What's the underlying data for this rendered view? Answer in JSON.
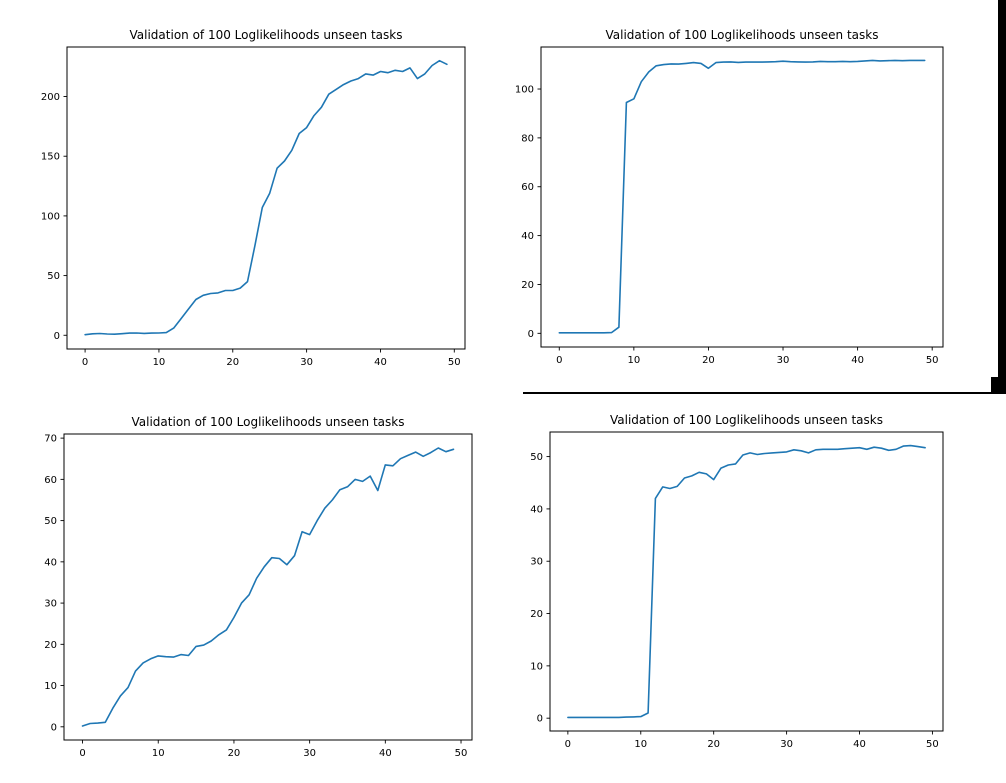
{
  "figure_grid": {
    "background_color": "#ffffff",
    "text_color": "#000000",
    "spine_color": "#000000"
  },
  "chart_data": [
    {
      "id": "top-left",
      "type": "line",
      "title": "Validation of 100 Loglikelihoods unseen tasks",
      "xlabel": "",
      "ylabel": "",
      "legend": null,
      "grid": false,
      "line_color": "#1f77b4",
      "x_start": 0,
      "x_step": 1,
      "x_ticks": [
        0,
        10,
        20,
        30,
        40,
        50
      ],
      "y_ticks": [
        0,
        50,
        100,
        150,
        200
      ],
      "xlim": [
        -2.45,
        51.45
      ],
      "ylim": [
        -11.5,
        241.5
      ],
      "values": [
        0.5,
        1.2,
        1.5,
        1.1,
        0.9,
        1.3,
        1.8,
        1.9,
        1.6,
        1.8,
        1.9,
        2.2,
        6,
        14,
        22,
        30,
        33.5,
        35,
        35.5,
        37.5,
        37.5,
        39.5,
        45,
        75,
        107,
        119,
        140,
        146,
        155,
        169,
        174,
        184,
        191,
        202,
        206,
        210,
        213,
        215,
        219,
        218,
        221,
        220,
        222,
        221,
        224,
        215,
        219,
        226,
        230,
        227
      ]
    },
    {
      "id": "top-right",
      "type": "line",
      "title": "Validation of 100 Loglikelihoods unseen tasks",
      "xlabel": "",
      "ylabel": "",
      "legend": null,
      "grid": false,
      "line_color": "#1f77b4",
      "x_start": 0,
      "x_step": 1,
      "x_ticks": [
        0,
        10,
        20,
        30,
        40,
        50
      ],
      "y_ticks": [
        0,
        20,
        40,
        60,
        80,
        100
      ],
      "xlim": [
        -2.45,
        51.45
      ],
      "ylim": [
        -5.6,
        117.2
      ],
      "values": [
        0.2,
        0.2,
        0.2,
        0.2,
        0.2,
        0.2,
        0.2,
        0.3,
        2.5,
        94.5,
        96,
        103,
        107,
        109.5,
        110,
        110.3,
        110.2,
        110.5,
        110.8,
        110.5,
        108.5,
        110.8,
        111,
        111.1,
        110.9,
        111,
        111,
        111,
        111.1,
        111.2,
        111.4,
        111.2,
        111.1,
        111,
        111.1,
        111.3,
        111.2,
        111.2,
        111.3,
        111.2,
        111.3,
        111.5,
        111.7,
        111.5,
        111.6,
        111.7,
        111.6,
        111.7,
        111.7,
        111.7
      ]
    },
    {
      "id": "bottom-left",
      "type": "line",
      "title": "Validation of 100 Loglikelihoods unseen tasks",
      "xlabel": "",
      "ylabel": "",
      "legend": null,
      "grid": false,
      "line_color": "#1f77b4",
      "x_start": 0,
      "x_step": 1,
      "x_ticks": [
        0,
        10,
        20,
        30,
        40,
        50
      ],
      "y_ticks": [
        0,
        10,
        20,
        30,
        40,
        50,
        60,
        70
      ],
      "xlim": [
        -2.45,
        51.45
      ],
      "ylim": [
        -3.2,
        71.0
      ],
      "values": [
        0.2,
        0.8,
        0.9,
        1.1,
        4.5,
        7.5,
        9.5,
        13.5,
        15.5,
        16.5,
        17.2,
        17,
        16.9,
        17.5,
        17.3,
        19.5,
        19.8,
        20.8,
        22.3,
        23.5,
        26.5,
        30,
        32,
        36,
        38.8,
        41,
        40.8,
        39.3,
        41.5,
        47.3,
        46.6,
        50,
        53,
        55,
        57.5,
        58.2,
        60,
        59.5,
        60.8,
        57.3,
        63.5,
        63.3,
        65,
        65.8,
        66.6,
        65.6,
        66.5,
        67.6,
        66.7,
        67.3
      ]
    },
    {
      "id": "bottom-right",
      "type": "line",
      "title": "Validation of 100 Loglikelihoods unseen tasks",
      "xlabel": "",
      "ylabel": "",
      "legend": null,
      "grid": false,
      "line_color": "#1f77b4",
      "x_start": 0,
      "x_step": 1,
      "x_ticks": [
        0,
        10,
        20,
        30,
        40,
        50
      ],
      "y_ticks": [
        0,
        10,
        20,
        30,
        40,
        50
      ],
      "xlim": [
        -2.45,
        51.45
      ],
      "ylim": [
        -2.45,
        54.7
      ],
      "values": [
        0.15,
        0.15,
        0.15,
        0.15,
        0.15,
        0.15,
        0.15,
        0.15,
        0.2,
        0.25,
        0.3,
        1,
        42,
        44.2,
        43.9,
        44.3,
        45.9,
        46.3,
        47,
        46.7,
        45.6,
        47.8,
        48.4,
        48.6,
        50.3,
        50.7,
        50.4,
        50.6,
        50.7,
        50.8,
        50.9,
        51.3,
        51.1,
        50.7,
        51.3,
        51.4,
        51.4,
        51.4,
        51.5,
        51.6,
        51.7,
        51.4,
        51.8,
        51.6,
        51.2,
        51.4,
        52,
        52.1,
        51.9,
        51.7
      ]
    }
  ],
  "artifacts": {
    "color": "#000000",
    "items": [
      "window-edge-right-bar",
      "window-edge-bottom-line",
      "window-edge-corner-block"
    ]
  }
}
